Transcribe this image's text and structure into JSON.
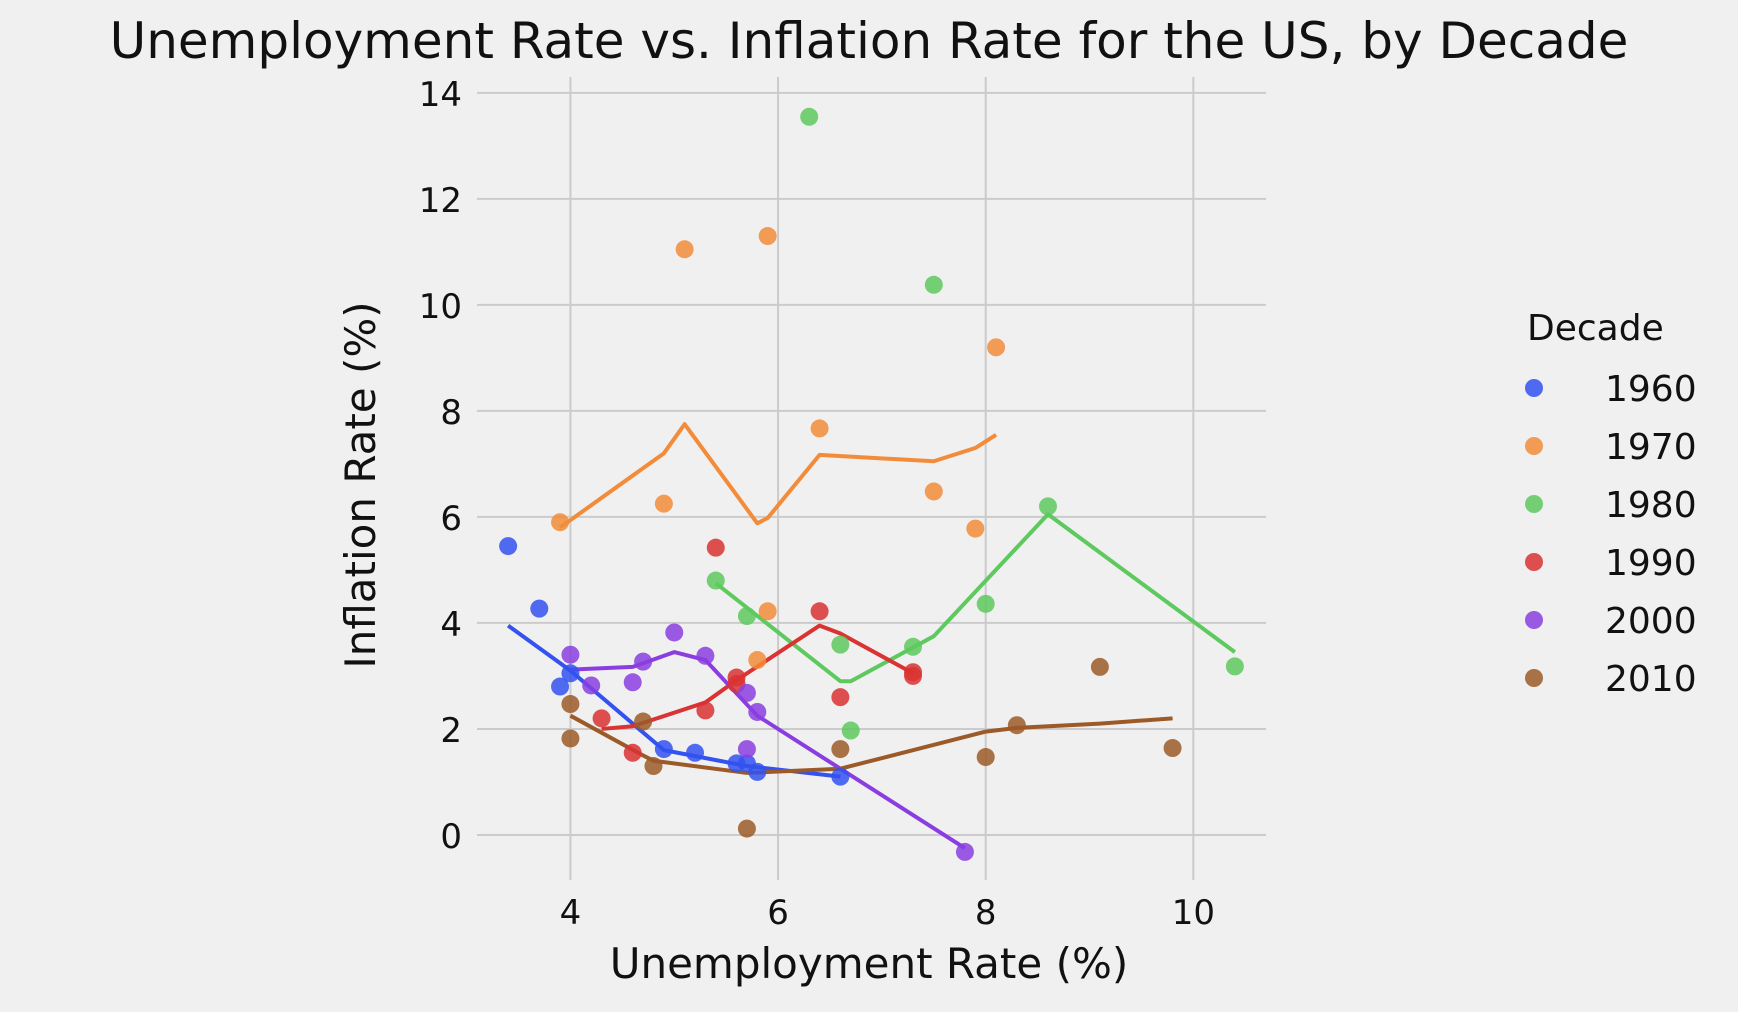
{
  "chart_data": {
    "type": "scatter",
    "title": "Unemployment Rate vs. Inflation Rate for the US, by Decade",
    "xlabel": "Unemployment Rate (%)",
    "ylabel": "Inflation Rate (%)",
    "xlim": [
      3.1,
      10.7
    ],
    "ylim": [
      -0.85,
      14.3
    ],
    "xticks": [
      4,
      6,
      8,
      10
    ],
    "yticks": [
      0,
      2,
      4,
      6,
      8,
      10,
      12,
      14
    ],
    "grid": true,
    "legend_title": "Decade",
    "legend_position": "right",
    "series": [
      {
        "name": "1960",
        "color": "#3352f0",
        "points": [
          [
            3.4,
            5.45
          ],
          [
            3.7,
            4.27
          ],
          [
            3.9,
            2.8
          ],
          [
            4.0,
            3.05
          ],
          [
            4.9,
            1.62
          ],
          [
            5.2,
            1.55
          ],
          [
            5.6,
            1.35
          ],
          [
            5.7,
            1.35
          ],
          [
            5.8,
            1.19
          ],
          [
            6.6,
            1.1
          ]
        ],
        "line": [
          [
            3.4,
            3.95
          ],
          [
            4.0,
            3.1
          ],
          [
            4.9,
            1.6
          ],
          [
            5.7,
            1.3
          ],
          [
            6.6,
            1.1
          ]
        ]
      },
      {
        "name": "1970",
        "color": "#f28c3a",
        "points": [
          [
            3.9,
            5.9
          ],
          [
            4.9,
            6.25
          ],
          [
            5.1,
            11.05
          ],
          [
            5.8,
            3.3
          ],
          [
            5.9,
            4.22
          ],
          [
            5.9,
            11.3
          ],
          [
            6.4,
            7.67
          ],
          [
            7.5,
            6.48
          ],
          [
            7.9,
            5.78
          ],
          [
            8.1,
            9.2
          ]
        ],
        "line": [
          [
            3.9,
            5.8
          ],
          [
            4.9,
            7.2
          ],
          [
            5.1,
            7.75
          ],
          [
            5.8,
            5.88
          ],
          [
            5.9,
            5.98
          ],
          [
            6.4,
            7.17
          ],
          [
            7.5,
            7.05
          ],
          [
            7.9,
            7.3
          ],
          [
            8.1,
            7.55
          ]
        ]
      },
      {
        "name": "1980",
        "color": "#5ec95e",
        "points": [
          [
            5.4,
            4.8
          ],
          [
            5.7,
            4.13
          ],
          [
            6.3,
            13.55
          ],
          [
            6.6,
            3.59
          ],
          [
            6.7,
            1.97
          ],
          [
            7.3,
            3.55
          ],
          [
            7.5,
            10.38
          ],
          [
            8.0,
            4.36
          ],
          [
            8.6,
            6.2
          ],
          [
            10.4,
            3.18
          ]
        ],
        "line": [
          [
            5.4,
            4.75
          ],
          [
            6.6,
            2.9
          ],
          [
            6.7,
            2.9
          ],
          [
            7.5,
            3.75
          ],
          [
            8.6,
            6.05
          ],
          [
            10.4,
            3.45
          ]
        ]
      },
      {
        "name": "1990",
        "color": "#d93333",
        "points": [
          [
            4.3,
            2.2
          ],
          [
            4.6,
            1.55
          ],
          [
            5.3,
            2.35
          ],
          [
            5.4,
            5.42
          ],
          [
            5.6,
            2.85
          ],
          [
            5.6,
            2.97
          ],
          [
            6.4,
            4.22
          ],
          [
            6.6,
            2.6
          ],
          [
            7.3,
            3.0
          ],
          [
            7.3,
            3.07
          ]
        ],
        "line": [
          [
            4.3,
            2.0
          ],
          [
            4.6,
            2.05
          ],
          [
            5.3,
            2.5
          ],
          [
            5.6,
            2.92
          ],
          [
            6.4,
            3.95
          ],
          [
            6.6,
            3.8
          ],
          [
            7.3,
            3.05
          ]
        ]
      },
      {
        "name": "2000",
        "color": "#8a3ee0",
        "points": [
          [
            4.0,
            3.4
          ],
          [
            4.2,
            2.82
          ],
          [
            4.6,
            2.88
          ],
          [
            4.7,
            3.27
          ],
          [
            5.0,
            3.82
          ],
          [
            5.3,
            3.38
          ],
          [
            5.7,
            2.68
          ],
          [
            5.7,
            1.62
          ],
          [
            5.8,
            2.32
          ],
          [
            7.8,
            -0.32
          ]
        ],
        "line": [
          [
            4.0,
            3.12
          ],
          [
            4.6,
            3.17
          ],
          [
            5.0,
            3.45
          ],
          [
            5.3,
            3.3
          ],
          [
            5.8,
            2.25
          ],
          [
            7.8,
            -0.25
          ]
        ]
      },
      {
        "name": "2010",
        "color": "#9c5a28",
        "points": [
          [
            4.0,
            2.47
          ],
          [
            4.0,
            1.82
          ],
          [
            4.7,
            2.14
          ],
          [
            4.8,
            1.3
          ],
          [
            5.7,
            0.12
          ],
          [
            6.6,
            1.62
          ],
          [
            8.0,
            1.47
          ],
          [
            8.3,
            2.07
          ],
          [
            9.1,
            3.17
          ],
          [
            9.8,
            1.64
          ]
        ],
        "line": [
          [
            4.0,
            2.25
          ],
          [
            4.7,
            1.5
          ],
          [
            4.8,
            1.4
          ],
          [
            5.7,
            1.17
          ],
          [
            6.6,
            1.25
          ],
          [
            8.0,
            1.95
          ],
          [
            8.3,
            2.02
          ],
          [
            9.1,
            2.1
          ],
          [
            9.8,
            2.2
          ]
        ]
      }
    ]
  }
}
